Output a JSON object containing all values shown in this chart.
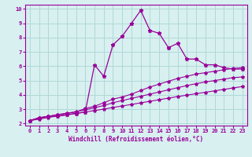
{
  "xlabel": "Windchill (Refroidissement éolien,°C)",
  "x_values": [
    0,
    1,
    2,
    3,
    4,
    5,
    6,
    7,
    8,
    9,
    10,
    11,
    12,
    13,
    14,
    15,
    16,
    17,
    18,
    19,
    20,
    21,
    22,
    23
  ],
  "line1_y": [
    2.2,
    2.4,
    2.5,
    2.5,
    2.6,
    2.7,
    2.8,
    6.1,
    5.3,
    7.5,
    8.1,
    9.0,
    9.9,
    8.5,
    8.3,
    7.3,
    7.6,
    6.5,
    6.5,
    6.1,
    6.1,
    5.9,
    5.8,
    5.8
  ],
  "line2_y": [
    2.2,
    2.4,
    2.5,
    2.6,
    2.7,
    2.8,
    3.05,
    3.2,
    3.45,
    3.7,
    3.85,
    4.05,
    4.3,
    4.55,
    4.75,
    4.95,
    5.15,
    5.3,
    5.45,
    5.55,
    5.65,
    5.75,
    5.85,
    5.9
  ],
  "line3_y": [
    2.2,
    2.35,
    2.5,
    2.62,
    2.72,
    2.82,
    2.95,
    3.1,
    3.25,
    3.45,
    3.6,
    3.75,
    3.9,
    4.05,
    4.2,
    4.35,
    4.5,
    4.65,
    4.78,
    4.9,
    5.0,
    5.1,
    5.2,
    5.25
  ],
  "line4_y": [
    2.2,
    2.3,
    2.42,
    2.52,
    2.62,
    2.7,
    2.8,
    2.9,
    3.0,
    3.12,
    3.22,
    3.33,
    3.44,
    3.55,
    3.66,
    3.77,
    3.88,
    3.98,
    4.08,
    4.18,
    4.28,
    4.38,
    4.48,
    4.58
  ],
  "line_color": "#990099",
  "bg_color": "#d8f0f0",
  "grid_color": "#b0d8d8",
  "ylim": [
    2,
    10
  ],
  "xlim": [
    0,
    23
  ],
  "yticks": [
    2,
    3,
    4,
    5,
    6,
    7,
    8,
    9,
    10
  ],
  "xticks": [
    0,
    1,
    2,
    3,
    4,
    5,
    6,
    7,
    8,
    9,
    10,
    11,
    12,
    13,
    14,
    15,
    16,
    17,
    18,
    19,
    20,
    21,
    22,
    23
  ]
}
